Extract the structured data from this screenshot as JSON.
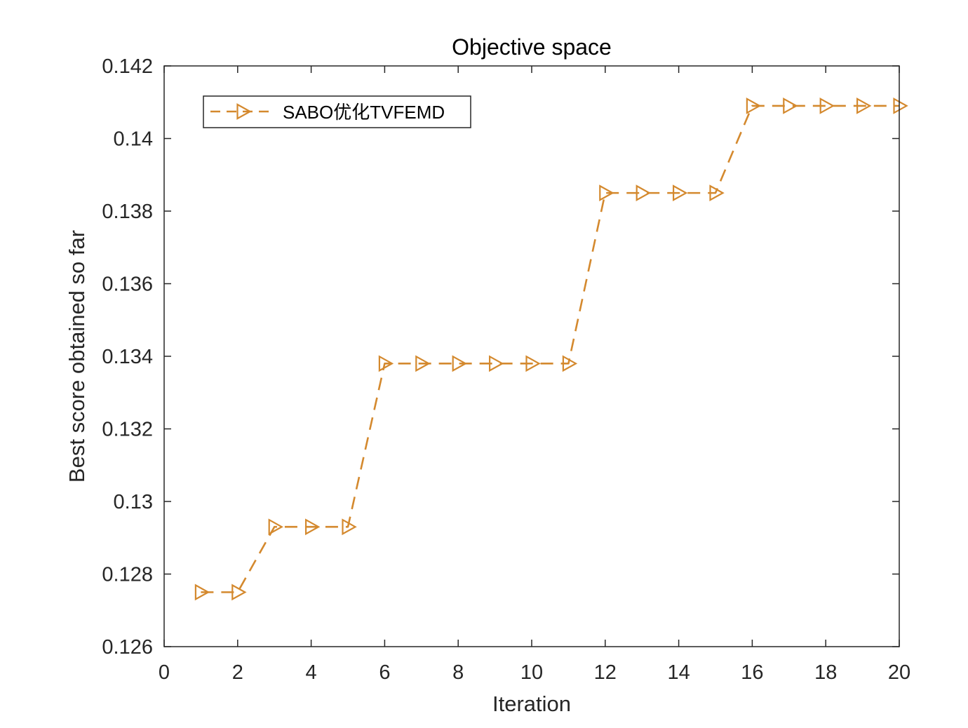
{
  "chart_data": {
    "type": "line",
    "title": "Objective space",
    "xlabel": "Iteration",
    "ylabel": "Best score obtained so far",
    "xlim": [
      0,
      20
    ],
    "ylim": [
      0.126,
      0.142
    ],
    "xticks": [
      0,
      2,
      4,
      6,
      8,
      10,
      12,
      14,
      16,
      18,
      20
    ],
    "yticks": [
      0.126,
      0.128,
      0.13,
      0.132,
      0.134,
      0.136,
      0.138,
      0.14,
      0.142
    ],
    "xtick_labels": [
      "0",
      "2",
      "4",
      "6",
      "8",
      "10",
      "12",
      "14",
      "16",
      "18",
      "20"
    ],
    "ytick_labels": [
      "0.126",
      "0.128",
      "0.13",
      "0.132",
      "0.134",
      "0.136",
      "0.138",
      "0.14",
      "0.142"
    ],
    "grid": false,
    "legend_position": "top-left",
    "series": [
      {
        "name": "SABO优化TVFEMD",
        "color": "#D4892E",
        "line_style": "dashed",
        "marker": "triangle-right",
        "x": [
          1,
          2,
          3,
          4,
          5,
          6,
          7,
          8,
          9,
          10,
          11,
          12,
          13,
          14,
          15,
          16,
          17,
          18,
          19,
          20
        ],
        "y": [
          0.1275,
          0.1275,
          0.1293,
          0.1293,
          0.1293,
          0.1338,
          0.1338,
          0.1338,
          0.1338,
          0.1338,
          0.1338,
          0.1385,
          0.1385,
          0.1385,
          0.1385,
          0.1409,
          0.1409,
          0.1409,
          0.1409,
          0.1409
        ]
      }
    ]
  }
}
